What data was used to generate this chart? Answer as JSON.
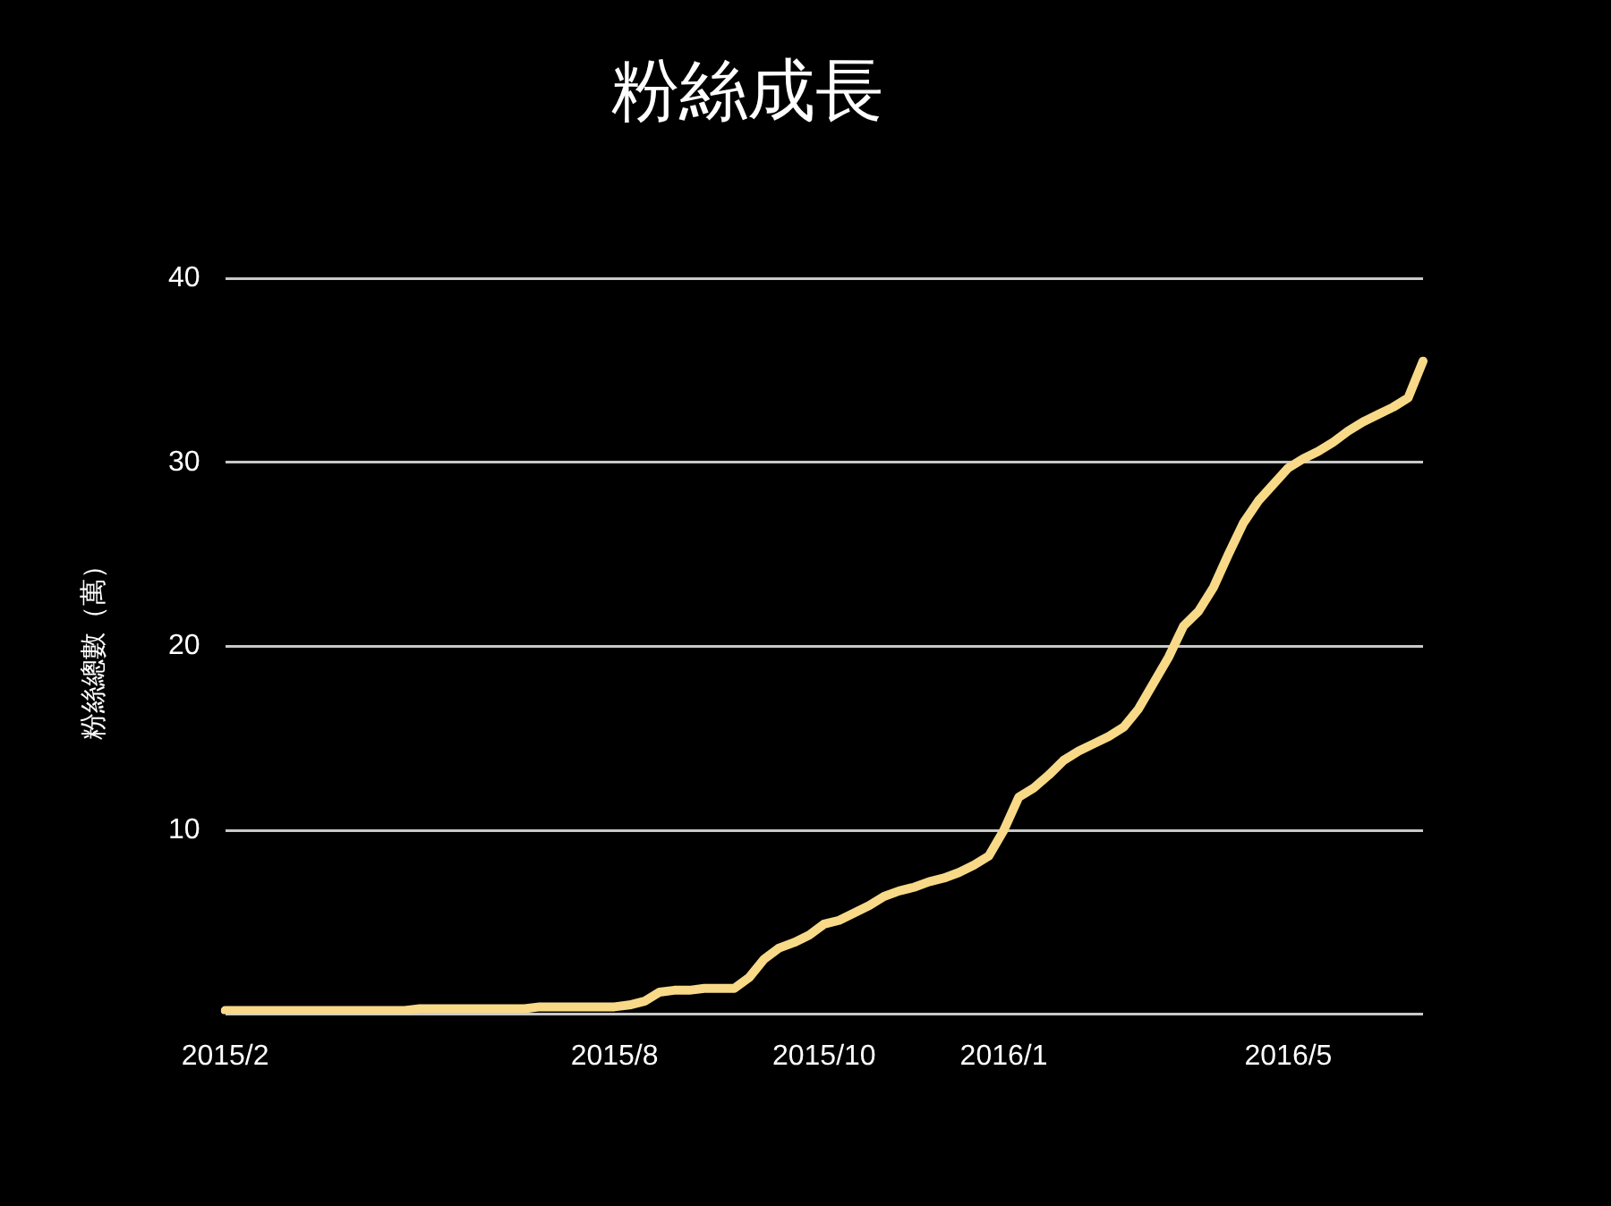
{
  "chart_data": {
    "type": "line",
    "title": "粉絲成長",
    "ylabel": "粉絲總數（萬）",
    "categories": [
      "2015/2",
      null,
      null,
      null,
      null,
      null,
      null,
      null,
      null,
      null,
      null,
      null,
      null,
      null,
      null,
      null,
      null,
      null,
      null,
      null,
      null,
      null,
      null,
      null,
      null,
      null,
      "2015/8",
      null,
      null,
      null,
      null,
      null,
      null,
      null,
      null,
      null,
      null,
      null,
      null,
      null,
      "2015/10",
      null,
      null,
      null,
      null,
      null,
      null,
      null,
      null,
      null,
      null,
      null,
      "2016/1",
      null,
      null,
      null,
      null,
      null,
      null,
      null,
      null,
      null,
      null,
      null,
      null,
      null,
      null,
      null,
      null,
      null,
      null,
      "2016/5",
      null,
      null,
      null,
      null,
      null,
      null,
      null,
      null,
      null
    ],
    "series": [
      {
        "color": "#f7d987",
        "values": [
          0.2,
          0.2,
          0.2,
          0.2,
          0.2,
          0.2,
          0.2,
          0.2,
          0.2,
          0.2,
          0.2,
          0.2,
          0.2,
          0.3,
          0.3,
          0.3,
          0.3,
          0.3,
          0.3,
          0.3,
          0.3,
          0.4,
          0.4,
          0.4,
          0.4,
          0.4,
          0.4,
          0.5,
          0.7,
          1.2,
          1.3,
          1.3,
          1.4,
          1.4,
          1.4,
          2.0,
          3.0,
          3.6,
          3.9,
          4.3,
          4.9,
          5.1,
          5.5,
          5.9,
          6.4,
          6.7,
          6.9,
          7.2,
          7.4,
          7.7,
          8.1,
          8.6,
          10.0,
          11.8,
          12.3,
          13.0,
          13.8,
          14.3,
          14.7,
          15.1,
          15.6,
          16.6,
          18.0,
          19.4,
          21.1,
          21.9,
          23.2,
          25.0,
          26.7,
          27.9,
          28.8,
          29.7,
          30.2,
          30.6,
          31.1,
          31.7,
          32.2,
          32.6,
          33.0,
          33.5,
          35.5
        ]
      }
    ],
    "ylim": [
      0,
      40
    ],
    "yticks": [
      {
        "value": 0,
        "label": null
      },
      10,
      20,
      30,
      40
    ],
    "grid": "y",
    "legend": false,
    "marker": "none",
    "line_style": "solid"
  }
}
